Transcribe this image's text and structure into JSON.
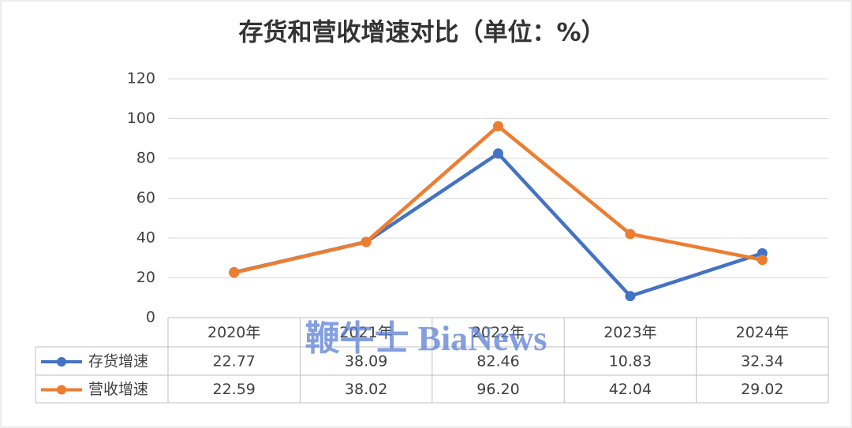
{
  "chart_data": {
    "type": "line",
    "title": "存货和营收增速对比（单位：%）",
    "categories": [
      "2020年",
      "2021年",
      "2022年",
      "2023年",
      "2024年"
    ],
    "series": [
      {
        "name": "存货增速",
        "color": "#4472c4",
        "values": [
          22.77,
          38.09,
          82.46,
          10.83,
          32.34
        ],
        "value_labels": [
          "22.77",
          "38.09",
          "82.46",
          "10.83",
          "32.34"
        ]
      },
      {
        "name": "营收增速",
        "color": "#ed7d31",
        "values": [
          22.59,
          38.02,
          96.2,
          42.04,
          29.02
        ],
        "value_labels": [
          "22.59",
          "38.02",
          "96.20",
          "42.04",
          "29.02"
        ]
      }
    ],
    "ylim": [
      0,
      120
    ],
    "yticks": [
      0,
      20,
      40,
      60,
      80,
      100,
      120
    ],
    "grid": true,
    "watermark": "鞭牛士 BiaNews"
  }
}
